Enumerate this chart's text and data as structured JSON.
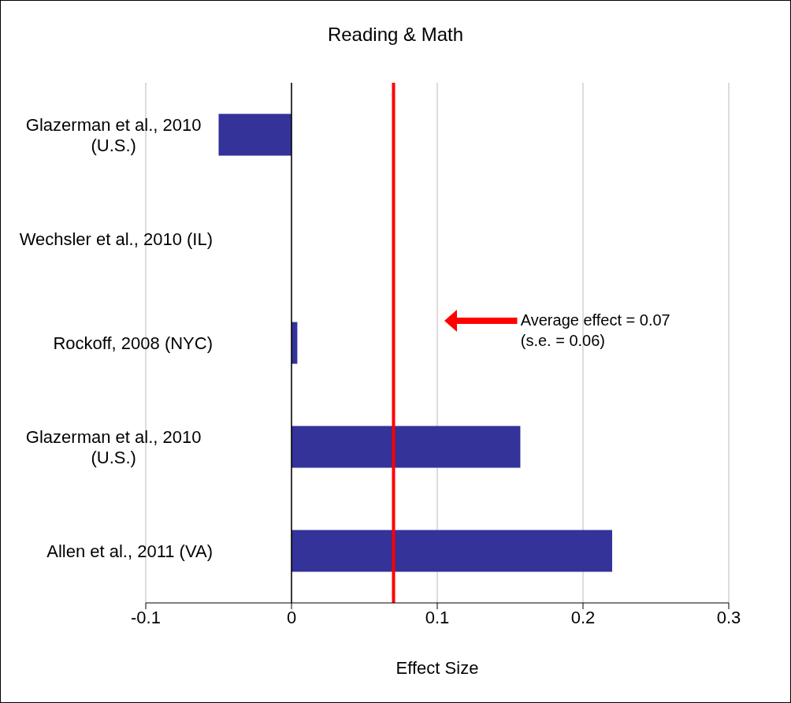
{
  "chart_data": {
    "type": "bar",
    "orientation": "horizontal",
    "title": "Reading & Math",
    "xlabel": "Effect Size",
    "categories": [
      "Glazerman et al., 2010 (U.S.)",
      "Wechsler et al., 2010 (IL)",
      "Rockoff, 2008 (NYC)",
      "Glazerman et al., 2010 (U.S.)",
      "Allen et al., 2011 (VA)"
    ],
    "values": [
      -0.05,
      0,
      0.004,
      0.157,
      0.22
    ],
    "color": "#333399",
    "xlim": [
      -0.1,
      0.3
    ],
    "xticks": [
      -0.1,
      0,
      0.1,
      0.2,
      0.3
    ],
    "grid": "x",
    "ref_lines": [
      {
        "axis": "x",
        "value": 0.07,
        "color": "#ff0000"
      }
    ],
    "annotations": [
      "Average effect = 0.07\n(s.e. = 0.06)"
    ]
  }
}
